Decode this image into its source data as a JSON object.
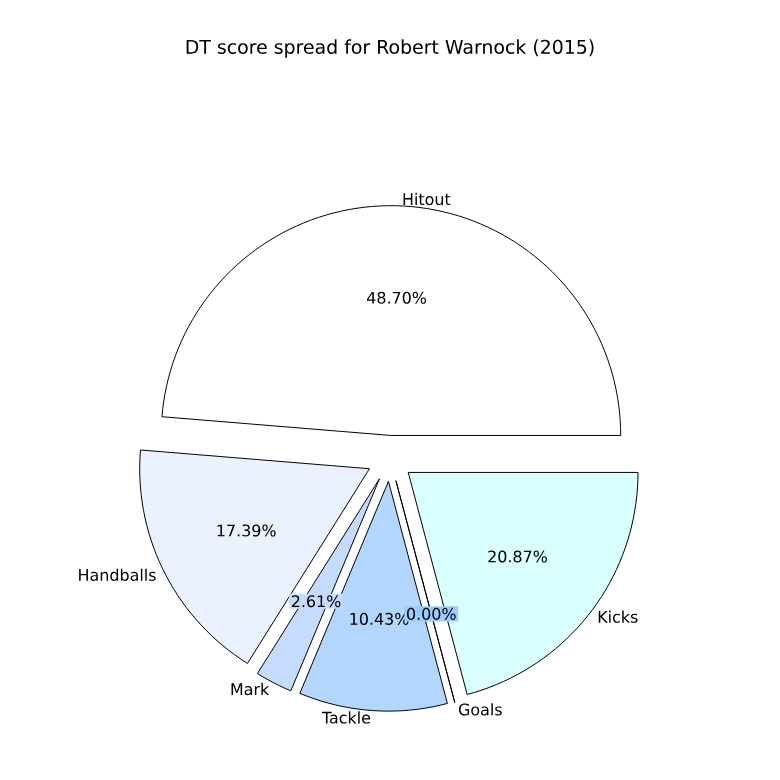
{
  "chart_data": {
    "type": "pie",
    "title": "DT score spread for Robert Warnock (2015)",
    "categories": [
      "Hitout",
      "Handballs",
      "Mark",
      "Tackle",
      "Goals",
      "Kicks"
    ],
    "values": [
      48.7,
      17.39,
      2.61,
      10.43,
      0.0,
      20.87
    ],
    "value_labels": [
      "48.70%",
      "17.39%",
      "2.61%",
      "10.43%",
      "0.00%",
      "20.87%"
    ],
    "colors": [
      "#ffffff",
      "#ebf2ff",
      "#c6dcff",
      "#b3d6ff",
      "#99ccff",
      "#d9ffff"
    ]
  }
}
